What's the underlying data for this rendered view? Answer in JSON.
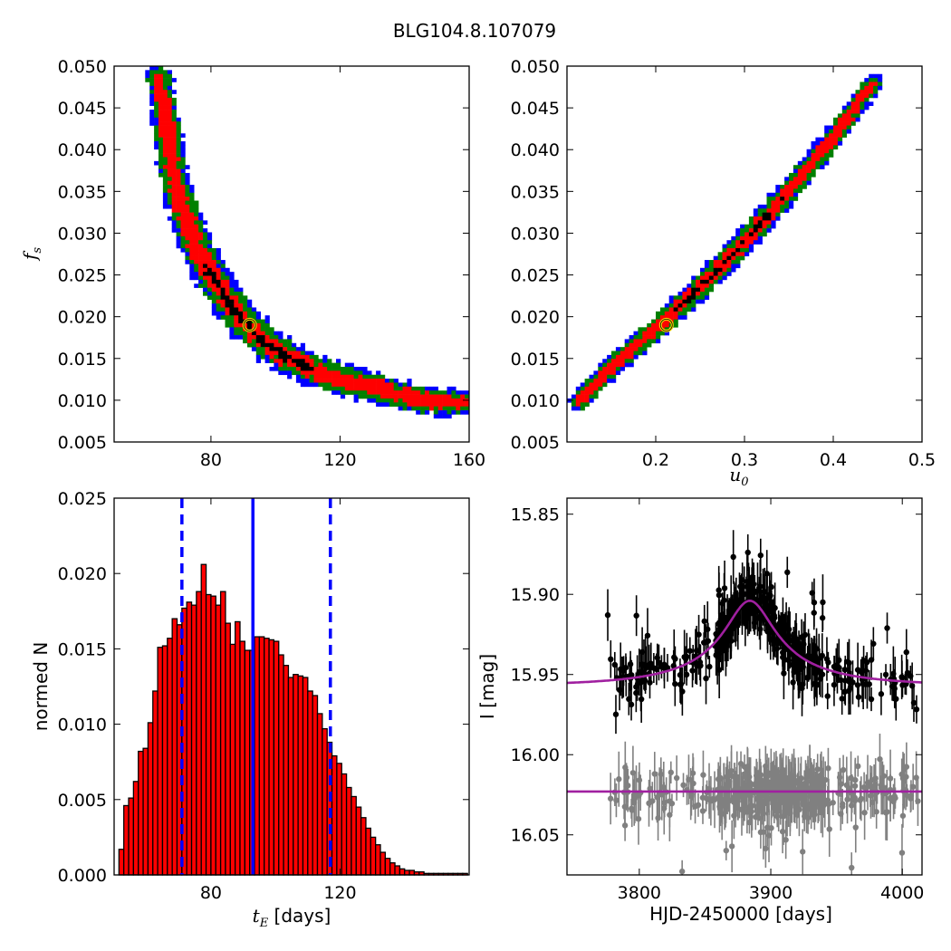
{
  "title": "BLG104.8.107079",
  "colors": {
    "outer": "#0000ff",
    "mid": "#008000",
    "inner": "#ff0000",
    "core": "#000000",
    "best_fit_marker": "#ffd700",
    "hist_bar": "#ff0000",
    "hist_line": "#0000ff",
    "model": "#a020a0",
    "data_main": "#000000",
    "data_ref": "#808080"
  },
  "chart_data": [
    {
      "id": "fs_vs_tE",
      "type": "heatmap",
      "title": "",
      "xlabel": "",
      "ylabel_base": "f",
      "ylabel_sub": "s",
      "xlim": [
        50,
        160
      ],
      "ylim": [
        0.005,
        0.05
      ],
      "xticks": [
        80,
        120,
        160
      ],
      "yticks": [
        0.005,
        0.01,
        0.015,
        0.02,
        0.025,
        0.03,
        0.035,
        0.04,
        0.045,
        0.05
      ],
      "ytick_labels": [
        "0.005",
        "0.010",
        "0.015",
        "0.020",
        "0.025",
        "0.030",
        "0.035",
        "0.040",
        "0.045",
        "0.050"
      ],
      "ridge": [
        [
          64,
          0.0485
        ],
        [
          66,
          0.044
        ],
        [
          68,
          0.038
        ],
        [
          70,
          0.0345
        ],
        [
          73,
          0.031
        ],
        [
          76,
          0.028
        ],
        [
          80,
          0.025
        ],
        [
          85,
          0.022
        ],
        [
          90,
          0.0195
        ],
        [
          96,
          0.0172
        ],
        [
          102,
          0.0155
        ],
        [
          110,
          0.0138
        ],
        [
          120,
          0.0125
        ],
        [
          130,
          0.0115
        ],
        [
          140,
          0.0105
        ],
        [
          150,
          0.0099
        ],
        [
          158,
          0.0097
        ]
      ],
      "best_fit": {
        "x": 92,
        "y": 0.019
      }
    },
    {
      "id": "fs_vs_u0",
      "type": "heatmap",
      "title": "",
      "xlabel_base": "u",
      "xlabel_sub": "0",
      "ylabel": "",
      "xlim": [
        0.1,
        0.5
      ],
      "ylim": [
        0.005,
        0.05
      ],
      "xticks": [
        0.2,
        0.3,
        0.4,
        0.5
      ],
      "xtick_labels": [
        "0.2",
        "0.3",
        "0.4",
        "0.5"
      ],
      "yticks": [
        0.005,
        0.01,
        0.015,
        0.02,
        0.025,
        0.03,
        0.035,
        0.04,
        0.045,
        0.05
      ],
      "ytick_labels": [
        "0.005",
        "0.010",
        "0.015",
        "0.020",
        "0.025",
        "0.030",
        "0.035",
        "0.040",
        "0.045",
        "0.050"
      ],
      "ridge": [
        [
          0.113,
          0.0098
        ],
        [
          0.15,
          0.014
        ],
        [
          0.2,
          0.0185
        ],
        [
          0.25,
          0.0235
        ],
        [
          0.3,
          0.029
        ],
        [
          0.35,
          0.035
        ],
        [
          0.4,
          0.0415
        ],
        [
          0.445,
          0.048
        ]
      ],
      "best_fit": {
        "x": 0.212,
        "y": 0.019
      }
    },
    {
      "id": "tE_histogram",
      "type": "bar",
      "title": "",
      "xlabel_base": "t",
      "xlabel_sub": "E",
      "xlabel_suffix": " [days]",
      "ylabel": "normed N",
      "xlim": [
        50,
        160
      ],
      "ylim": [
        0,
        0.025
      ],
      "xticks": [
        80,
        120
      ],
      "yticks": [
        0,
        0.005,
        0.01,
        0.015,
        0.02,
        0.025
      ],
      "ytick_labels": [
        "0.000",
        "0.005",
        "0.010",
        "0.015",
        "0.020",
        "0.025"
      ],
      "bin_start": 51.5,
      "bin_width": 1.5,
      "values": [
        0.0017,
        0.0046,
        0.0051,
        0.0062,
        0.0082,
        0.0084,
        0.0101,
        0.0122,
        0.0151,
        0.0152,
        0.0157,
        0.017,
        0.0166,
        0.0177,
        0.0181,
        0.0179,
        0.0188,
        0.0206,
        0.0186,
        0.0185,
        0.0179,
        0.0188,
        0.0167,
        0.0153,
        0.0168,
        0.0155,
        0.0149,
        0.0149,
        0.0158,
        0.0158,
        0.0157,
        0.0156,
        0.0155,
        0.0146,
        0.0139,
        0.0131,
        0.0133,
        0.0132,
        0.0131,
        0.0122,
        0.0119,
        0.0107,
        0.0097,
        0.0088,
        0.0079,
        0.0074,
        0.0067,
        0.0058,
        0.0052,
        0.0045,
        0.0038,
        0.0031,
        0.0025,
        0.002,
        0.0015,
        0.0011,
        0.0008,
        0.0006,
        0.0004,
        0.0003,
        0.0003,
        0.0002,
        0.0002,
        0.0001,
        0.0001,
        0.0001,
        0.0001,
        0.0001,
        0.0001,
        0.0001,
        0.0001,
        0.0001,
        0.0001
      ],
      "median": 93,
      "interval": [
        71,
        117
      ]
    },
    {
      "id": "light_curve",
      "type": "scatter",
      "title": "",
      "xlabel": "HJD-2450000 [days]",
      "ylabel": "I [mag]",
      "xlim": [
        3745,
        4015
      ],
      "ylim": [
        16.075,
        15.84
      ],
      "xticks": [
        3800,
        3900,
        4000
      ],
      "yticks": [
        15.85,
        15.9,
        15.95,
        16.0,
        16.05
      ],
      "ytick_labels": [
        "15.85",
        "15.90",
        "15.95",
        "16.00",
        "16.05"
      ],
      "model_main": {
        "baseline": 15.957,
        "peak": 15.904,
        "t0": 3884,
        "tE": 92,
        "u0": 0.212
      },
      "model_ref": {
        "level": 16.023
      },
      "data_main": {
        "series": "main",
        "x_range": [
          3775,
          4012
        ],
        "baseline": 15.957,
        "scatter": 0.008
      },
      "data_ref": {
        "series": "ref",
        "x_range": [
          3775,
          4012
        ],
        "level": 16.023,
        "scatter": 0.008
      }
    }
  ]
}
